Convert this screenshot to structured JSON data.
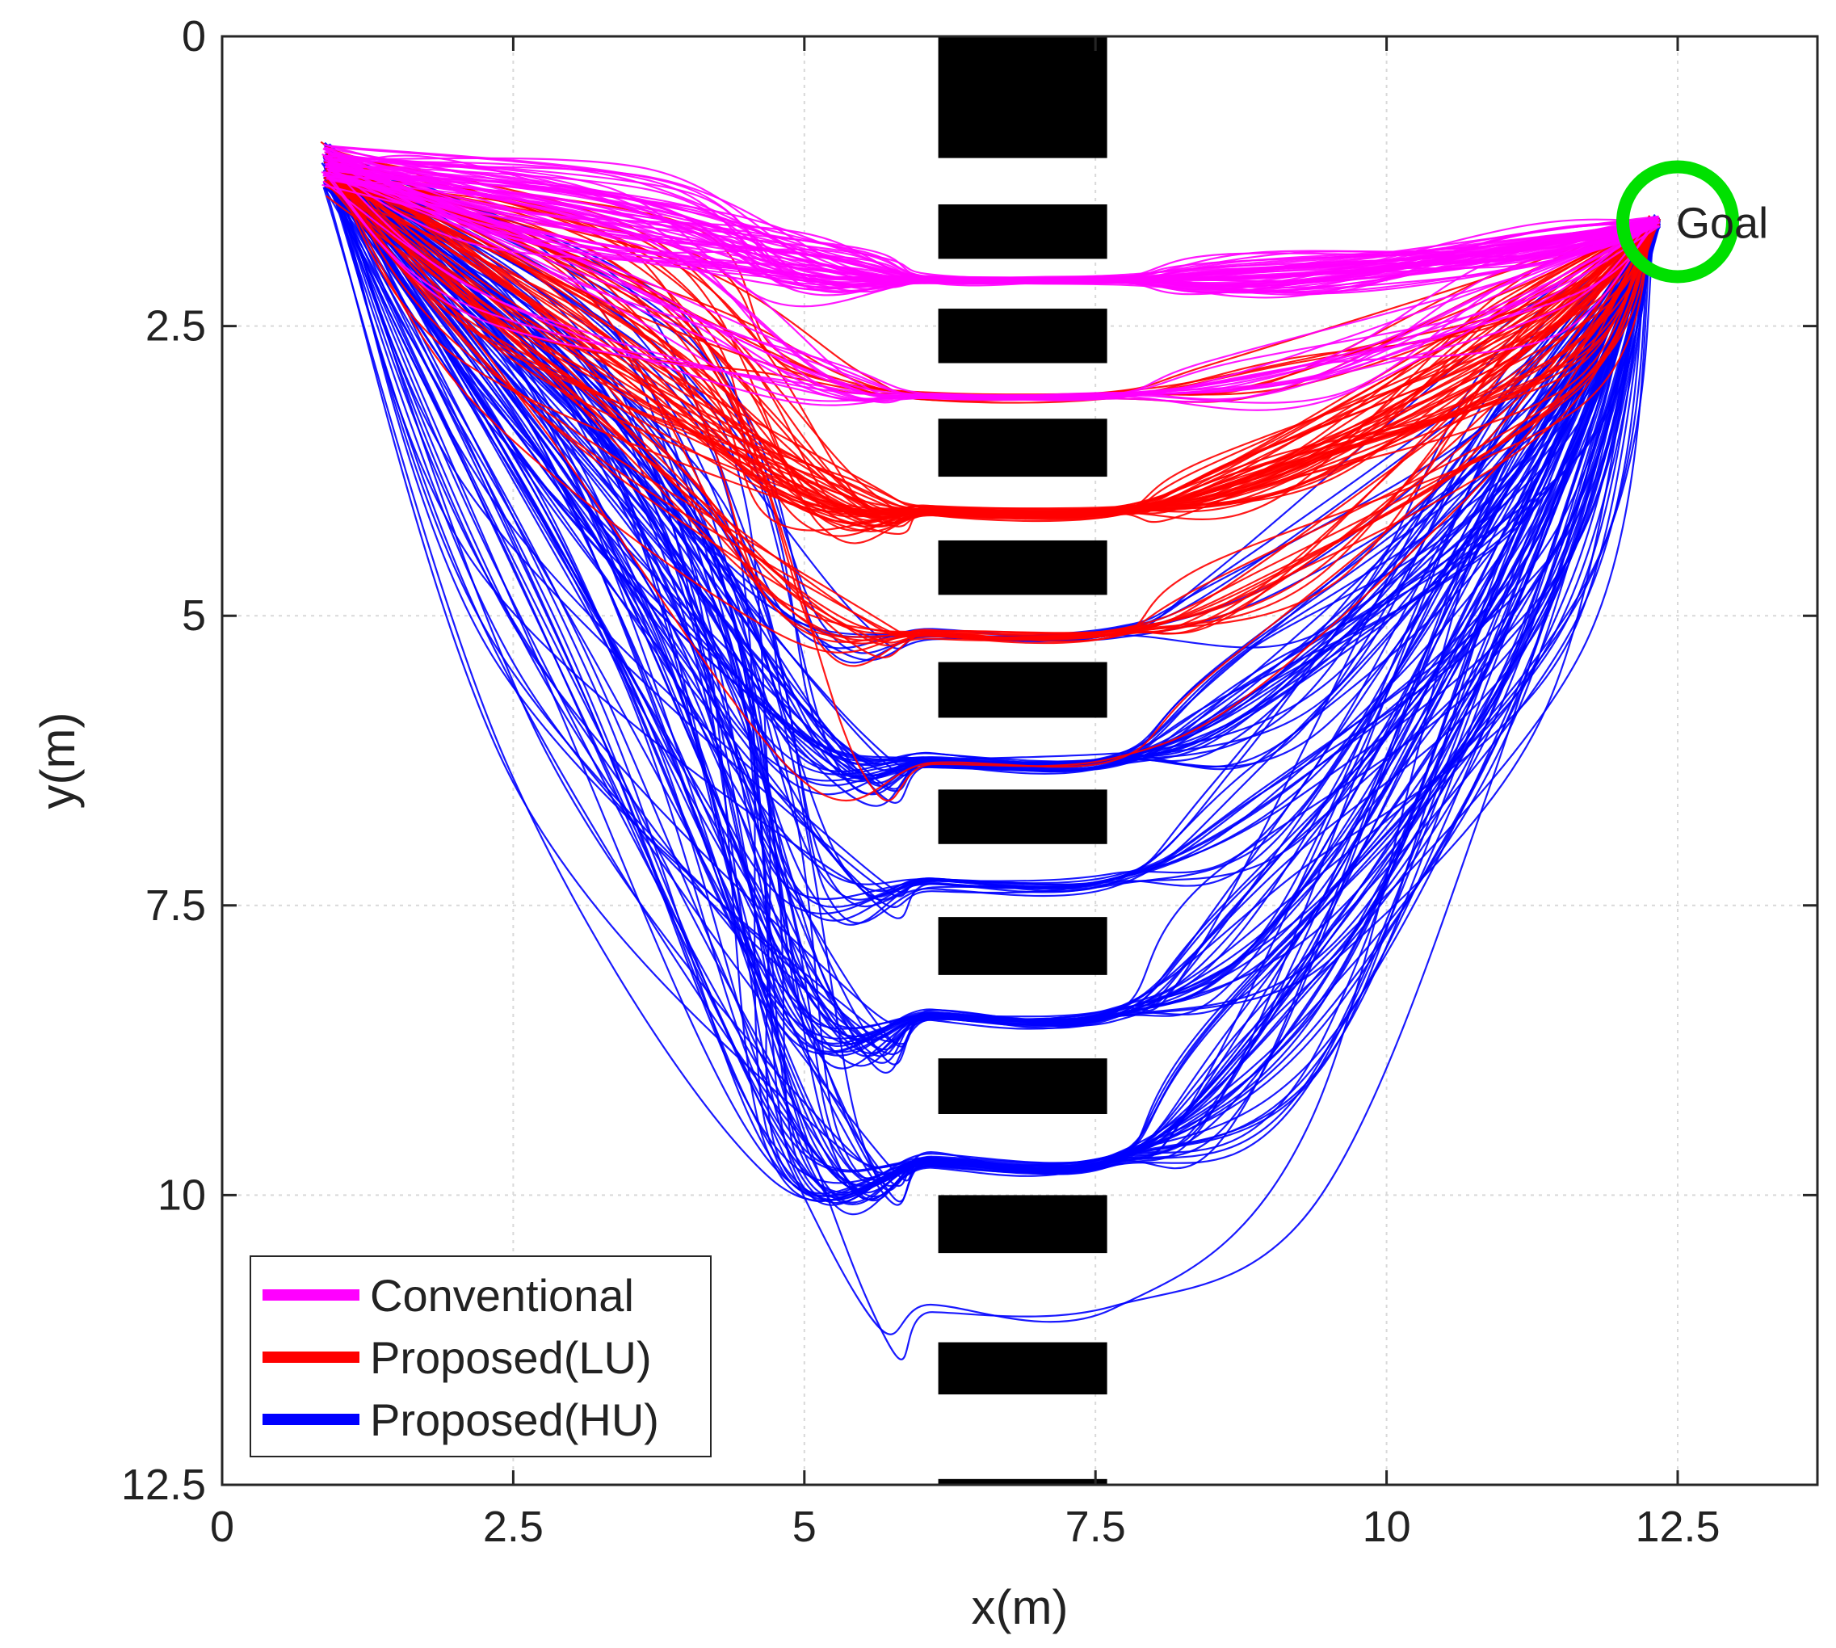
{
  "chart_data": {
    "type": "line",
    "title": "",
    "xlabel": "x(m)",
    "ylabel": "y(m)",
    "xlim": [
      0,
      13.7
    ],
    "ylim": [
      0,
      12.5
    ],
    "y_axis_inverted": true,
    "grid": true,
    "x_ticks": [
      0,
      2.5,
      5,
      7.5,
      10,
      12.5
    ],
    "x_tick_labels": [
      "0",
      "2.5",
      "5",
      "7.5",
      "10",
      "12.5"
    ],
    "y_ticks": [
      0,
      2.5,
      5,
      7.5,
      10,
      12.5
    ],
    "y_tick_labels": [
      "0",
      "2.5",
      "5",
      "7.5",
      "10",
      "12.5"
    ],
    "legend_position": "bottom-left",
    "start": [
      0.9,
      1.1
    ],
    "goal": {
      "label": "Goal",
      "x": 12.5,
      "y": 1.6,
      "color": "#00e000"
    },
    "obstacles": {
      "color": "#000000",
      "x_range": [
        6.15,
        7.6
      ],
      "blocks": [
        {
          "y1": 0.0,
          "y2": 1.05
        },
        {
          "y1": 1.45,
          "y2": 1.92
        },
        {
          "y1": 2.35,
          "y2": 2.82
        },
        {
          "y1": 3.3,
          "y2": 3.8
        },
        {
          "y1": 4.35,
          "y2": 4.82
        },
        {
          "y1": 5.4,
          "y2": 5.88
        },
        {
          "y1": 6.5,
          "y2": 6.97
        },
        {
          "y1": 7.6,
          "y2": 8.1
        },
        {
          "y1": 8.82,
          "y2": 9.3
        },
        {
          "y1": 10.0,
          "y2": 10.5
        },
        {
          "y1": 11.27,
          "y2": 11.72
        },
        {
          "y1": 12.45,
          "y2": 12.5
        }
      ]
    },
    "series": [
      {
        "name": "Conventional",
        "color": "#ff00ff",
        "gap_centers": [
          2.1,
          3.1
        ],
        "weights": [
          0.7,
          0.3
        ],
        "count": 70,
        "spread": 0.04
      },
      {
        "name": "Proposed(LU)",
        "color": "#ff0000",
        "gap_centers": [
          3.1,
          4.1,
          5.15,
          6.25
        ],
        "weights": [
          0.15,
          0.5,
          0.3,
          0.05
        ],
        "count": 70,
        "spread": 0.05
      },
      {
        "name": "Proposed(HU)",
        "color": "#0000ff",
        "gap_centers": [
          5.15,
          6.25,
          7.3,
          8.45,
          9.7,
          10.95
        ],
        "weights": [
          0.07,
          0.25,
          0.13,
          0.27,
          0.26,
          0.02
        ],
        "count": 120,
        "spread": 0.07
      }
    ]
  }
}
